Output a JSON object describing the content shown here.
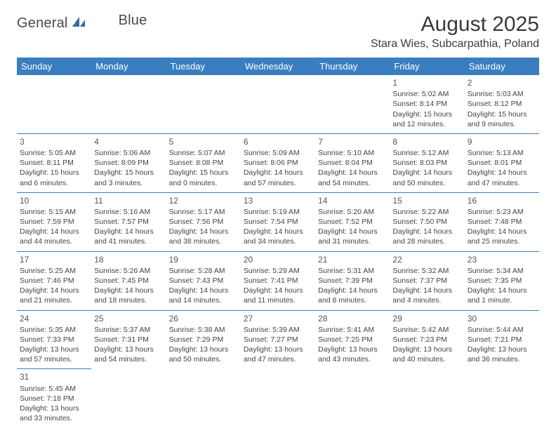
{
  "logo": {
    "text1": "General",
    "text2": "Blue"
  },
  "title": "August 2025",
  "location": "Stara Wies, Subcarpathia, Poland",
  "day_headers": [
    "Sunday",
    "Monday",
    "Tuesday",
    "Wednesday",
    "Thursday",
    "Friday",
    "Saturday"
  ],
  "header_bg": "#3a7ebf",
  "header_fg": "#ffffff",
  "row_border_color": "#3a7ebf",
  "text_color": "#444444",
  "daynum_color": "#555555",
  "font_family": "Arial",
  "cell_font_size_pt": 8,
  "header_font_size_pt": 10,
  "title_font_size_pt": 22,
  "location_font_size_pt": 12,
  "weeks": [
    [
      null,
      null,
      null,
      null,
      null,
      {
        "n": "1",
        "sr": "Sunrise: 5:02 AM",
        "ss": "Sunset: 8:14 PM",
        "dl": "Daylight: 15 hours and 12 minutes."
      },
      {
        "n": "2",
        "sr": "Sunrise: 5:03 AM",
        "ss": "Sunset: 8:12 PM",
        "dl": "Daylight: 15 hours and 9 minutes."
      }
    ],
    [
      {
        "n": "3",
        "sr": "Sunrise: 5:05 AM",
        "ss": "Sunset: 8:11 PM",
        "dl": "Daylight: 15 hours and 6 minutes."
      },
      {
        "n": "4",
        "sr": "Sunrise: 5:06 AM",
        "ss": "Sunset: 8:09 PM",
        "dl": "Daylight: 15 hours and 3 minutes."
      },
      {
        "n": "5",
        "sr": "Sunrise: 5:07 AM",
        "ss": "Sunset: 8:08 PM",
        "dl": "Daylight: 15 hours and 0 minutes."
      },
      {
        "n": "6",
        "sr": "Sunrise: 5:09 AM",
        "ss": "Sunset: 8:06 PM",
        "dl": "Daylight: 14 hours and 57 minutes."
      },
      {
        "n": "7",
        "sr": "Sunrise: 5:10 AM",
        "ss": "Sunset: 8:04 PM",
        "dl": "Daylight: 14 hours and 54 minutes."
      },
      {
        "n": "8",
        "sr": "Sunrise: 5:12 AM",
        "ss": "Sunset: 8:03 PM",
        "dl": "Daylight: 14 hours and 50 minutes."
      },
      {
        "n": "9",
        "sr": "Sunrise: 5:13 AM",
        "ss": "Sunset: 8:01 PM",
        "dl": "Daylight: 14 hours and 47 minutes."
      }
    ],
    [
      {
        "n": "10",
        "sr": "Sunrise: 5:15 AM",
        "ss": "Sunset: 7:59 PM",
        "dl": "Daylight: 14 hours and 44 minutes."
      },
      {
        "n": "11",
        "sr": "Sunrise: 5:16 AM",
        "ss": "Sunset: 7:57 PM",
        "dl": "Daylight: 14 hours and 41 minutes."
      },
      {
        "n": "12",
        "sr": "Sunrise: 5:17 AM",
        "ss": "Sunset: 7:56 PM",
        "dl": "Daylight: 14 hours and 38 minutes."
      },
      {
        "n": "13",
        "sr": "Sunrise: 5:19 AM",
        "ss": "Sunset: 7:54 PM",
        "dl": "Daylight: 14 hours and 34 minutes."
      },
      {
        "n": "14",
        "sr": "Sunrise: 5:20 AM",
        "ss": "Sunset: 7:52 PM",
        "dl": "Daylight: 14 hours and 31 minutes."
      },
      {
        "n": "15",
        "sr": "Sunrise: 5:22 AM",
        "ss": "Sunset: 7:50 PM",
        "dl": "Daylight: 14 hours and 28 minutes."
      },
      {
        "n": "16",
        "sr": "Sunrise: 5:23 AM",
        "ss": "Sunset: 7:48 PM",
        "dl": "Daylight: 14 hours and 25 minutes."
      }
    ],
    [
      {
        "n": "17",
        "sr": "Sunrise: 5:25 AM",
        "ss": "Sunset: 7:46 PM",
        "dl": "Daylight: 14 hours and 21 minutes."
      },
      {
        "n": "18",
        "sr": "Sunrise: 5:26 AM",
        "ss": "Sunset: 7:45 PM",
        "dl": "Daylight: 14 hours and 18 minutes."
      },
      {
        "n": "19",
        "sr": "Sunrise: 5:28 AM",
        "ss": "Sunset: 7:43 PM",
        "dl": "Daylight: 14 hours and 14 minutes."
      },
      {
        "n": "20",
        "sr": "Sunrise: 5:29 AM",
        "ss": "Sunset: 7:41 PM",
        "dl": "Daylight: 14 hours and 11 minutes."
      },
      {
        "n": "21",
        "sr": "Sunrise: 5:31 AM",
        "ss": "Sunset: 7:39 PM",
        "dl": "Daylight: 14 hours and 8 minutes."
      },
      {
        "n": "22",
        "sr": "Sunrise: 5:32 AM",
        "ss": "Sunset: 7:37 PM",
        "dl": "Daylight: 14 hours and 4 minutes."
      },
      {
        "n": "23",
        "sr": "Sunrise: 5:34 AM",
        "ss": "Sunset: 7:35 PM",
        "dl": "Daylight: 14 hours and 1 minute."
      }
    ],
    [
      {
        "n": "24",
        "sr": "Sunrise: 5:35 AM",
        "ss": "Sunset: 7:33 PM",
        "dl": "Daylight: 13 hours and 57 minutes."
      },
      {
        "n": "25",
        "sr": "Sunrise: 5:37 AM",
        "ss": "Sunset: 7:31 PM",
        "dl": "Daylight: 13 hours and 54 minutes."
      },
      {
        "n": "26",
        "sr": "Sunrise: 5:38 AM",
        "ss": "Sunset: 7:29 PM",
        "dl": "Daylight: 13 hours and 50 minutes."
      },
      {
        "n": "27",
        "sr": "Sunrise: 5:39 AM",
        "ss": "Sunset: 7:27 PM",
        "dl": "Daylight: 13 hours and 47 minutes."
      },
      {
        "n": "28",
        "sr": "Sunrise: 5:41 AM",
        "ss": "Sunset: 7:25 PM",
        "dl": "Daylight: 13 hours and 43 minutes."
      },
      {
        "n": "29",
        "sr": "Sunrise: 5:42 AM",
        "ss": "Sunset: 7:23 PM",
        "dl": "Daylight: 13 hours and 40 minutes."
      },
      {
        "n": "30",
        "sr": "Sunrise: 5:44 AM",
        "ss": "Sunset: 7:21 PM",
        "dl": "Daylight: 13 hours and 36 minutes."
      }
    ],
    [
      {
        "n": "31",
        "sr": "Sunrise: 5:45 AM",
        "ss": "Sunset: 7:18 PM",
        "dl": "Daylight: 13 hours and 33 minutes."
      },
      null,
      null,
      null,
      null,
      null,
      null
    ]
  ]
}
